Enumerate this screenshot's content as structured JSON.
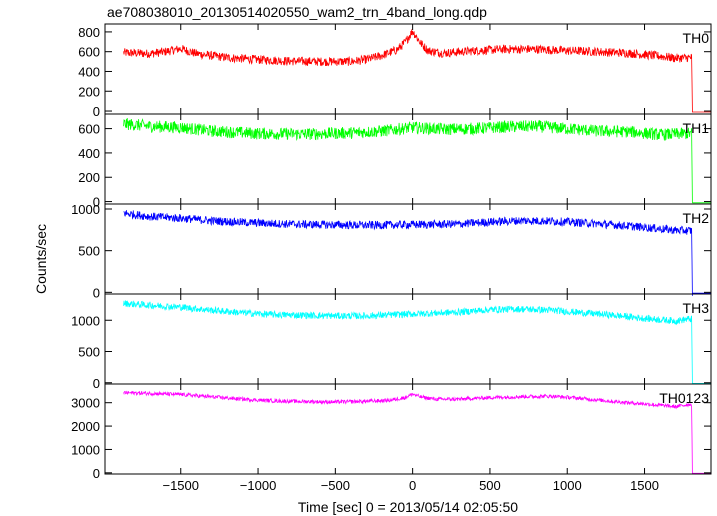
{
  "chart_data": {
    "type": "line",
    "title": "ae708038010_20130514020550_wam2_trn_4band_long.qdp",
    "xlabel": "Time [sec] 0 = 2013/05/14 02:05:50",
    "ylabel": "Counts/sec",
    "xlim": [
      -1990,
      1930
    ],
    "x_ticks": [
      -1500,
      -1000,
      -500,
      0,
      500,
      1000,
      1500
    ],
    "x_tick_labels": [
      "−1500",
      "−1000",
      "−500",
      "0",
      "500",
      "1000",
      "1500"
    ],
    "data_range": [
      -1870,
      1810
    ],
    "series": [
      {
        "name": "TH0",
        "color": "#ff0000",
        "ylim": [
          -30,
          880
        ],
        "yticks": [
          0,
          200,
          400,
          600,
          800
        ],
        "noise": 45,
        "x": [
          -1870,
          -1700,
          -1600,
          -1500,
          -1400,
          -1200,
          -1000,
          -800,
          -600,
          -400,
          -300,
          -200,
          -100,
          -50,
          0,
          50,
          100,
          200,
          400,
          600,
          800,
          1000,
          1200,
          1400,
          1600,
          1700,
          1790,
          1805,
          1810,
          1930
        ],
        "y": [
          590,
          580,
          600,
          630,
          580,
          540,
          520,
          505,
          500,
          500,
          520,
          560,
          620,
          690,
          810,
          690,
          610,
          585,
          610,
          625,
          625,
          610,
          600,
          585,
          555,
          535,
          540,
          540,
          -10,
          -10
        ]
      },
      {
        "name": "TH1",
        "color": "#00ff00",
        "ylim": [
          -20,
          720
        ],
        "yticks": [
          0,
          200,
          400,
          600
        ],
        "noise": 50,
        "x": [
          -1870,
          -1700,
          -1500,
          -1300,
          -1000,
          -700,
          -400,
          -200,
          0,
          200,
          400,
          600,
          800,
          1000,
          1200,
          1400,
          1600,
          1790,
          1805,
          1810,
          1930
        ],
        "y": [
          640,
          620,
          610,
          580,
          560,
          555,
          565,
          580,
          610,
          595,
          600,
          615,
          620,
          600,
          580,
          575,
          550,
          560,
          560,
          -10,
          -10
        ]
      },
      {
        "name": "TH2",
        "color": "#0000ff",
        "ylim": [
          -20,
          1060
        ],
        "yticks": [
          0,
          500,
          1000
        ],
        "noise": 50,
        "x": [
          -1870,
          -1700,
          -1500,
          -1300,
          -1100,
          -900,
          -700,
          -500,
          -300,
          -100,
          100,
          300,
          500,
          700,
          900,
          1100,
          1300,
          1500,
          1700,
          1790,
          1805,
          1810,
          1930
        ],
        "y": [
          950,
          910,
          890,
          860,
          840,
          825,
          815,
          810,
          805,
          810,
          815,
          820,
          845,
          860,
          855,
          835,
          810,
          780,
          745,
          740,
          740,
          -10,
          -10
        ]
      },
      {
        "name": "TH3",
        "color": "#00ffff",
        "ylim": [
          -20,
          1420
        ],
        "yticks": [
          0,
          500,
          1000
        ],
        "noise": 55,
        "x": [
          -1870,
          -1700,
          -1500,
          -1300,
          -1100,
          -900,
          -700,
          -500,
          -300,
          -100,
          100,
          300,
          500,
          700,
          900,
          1100,
          1300,
          1500,
          1700,
          1790,
          1805,
          1810,
          1930
        ],
        "y": [
          1270,
          1240,
          1210,
          1160,
          1120,
          1090,
          1080,
          1070,
          1070,
          1090,
          1110,
          1130,
          1170,
          1180,
          1160,
          1120,
          1080,
          1030,
          990,
          1020,
          1020,
          -10,
          -10
        ]
      },
      {
        "name": "TH0123",
        "color": "#ff00ff",
        "ylim": [
          -50,
          3800
        ],
        "yticks": [
          0,
          1000,
          2000,
          3000
        ],
        "noise": 80,
        "x": [
          -1870,
          -1700,
          -1500,
          -1300,
          -1100,
          -900,
          -700,
          -500,
          -300,
          -150,
          -50,
          0,
          50,
          150,
          300,
          500,
          700,
          900,
          1100,
          1300,
          1500,
          1700,
          1790,
          1805,
          1810,
          1930
        ],
        "y": [
          3430,
          3400,
          3350,
          3250,
          3150,
          3080,
          3050,
          3030,
          3060,
          3100,
          3220,
          3370,
          3250,
          3150,
          3150,
          3220,
          3260,
          3280,
          3180,
          3050,
          2950,
          2830,
          2930,
          2930,
          -20,
          -20
        ]
      }
    ]
  }
}
